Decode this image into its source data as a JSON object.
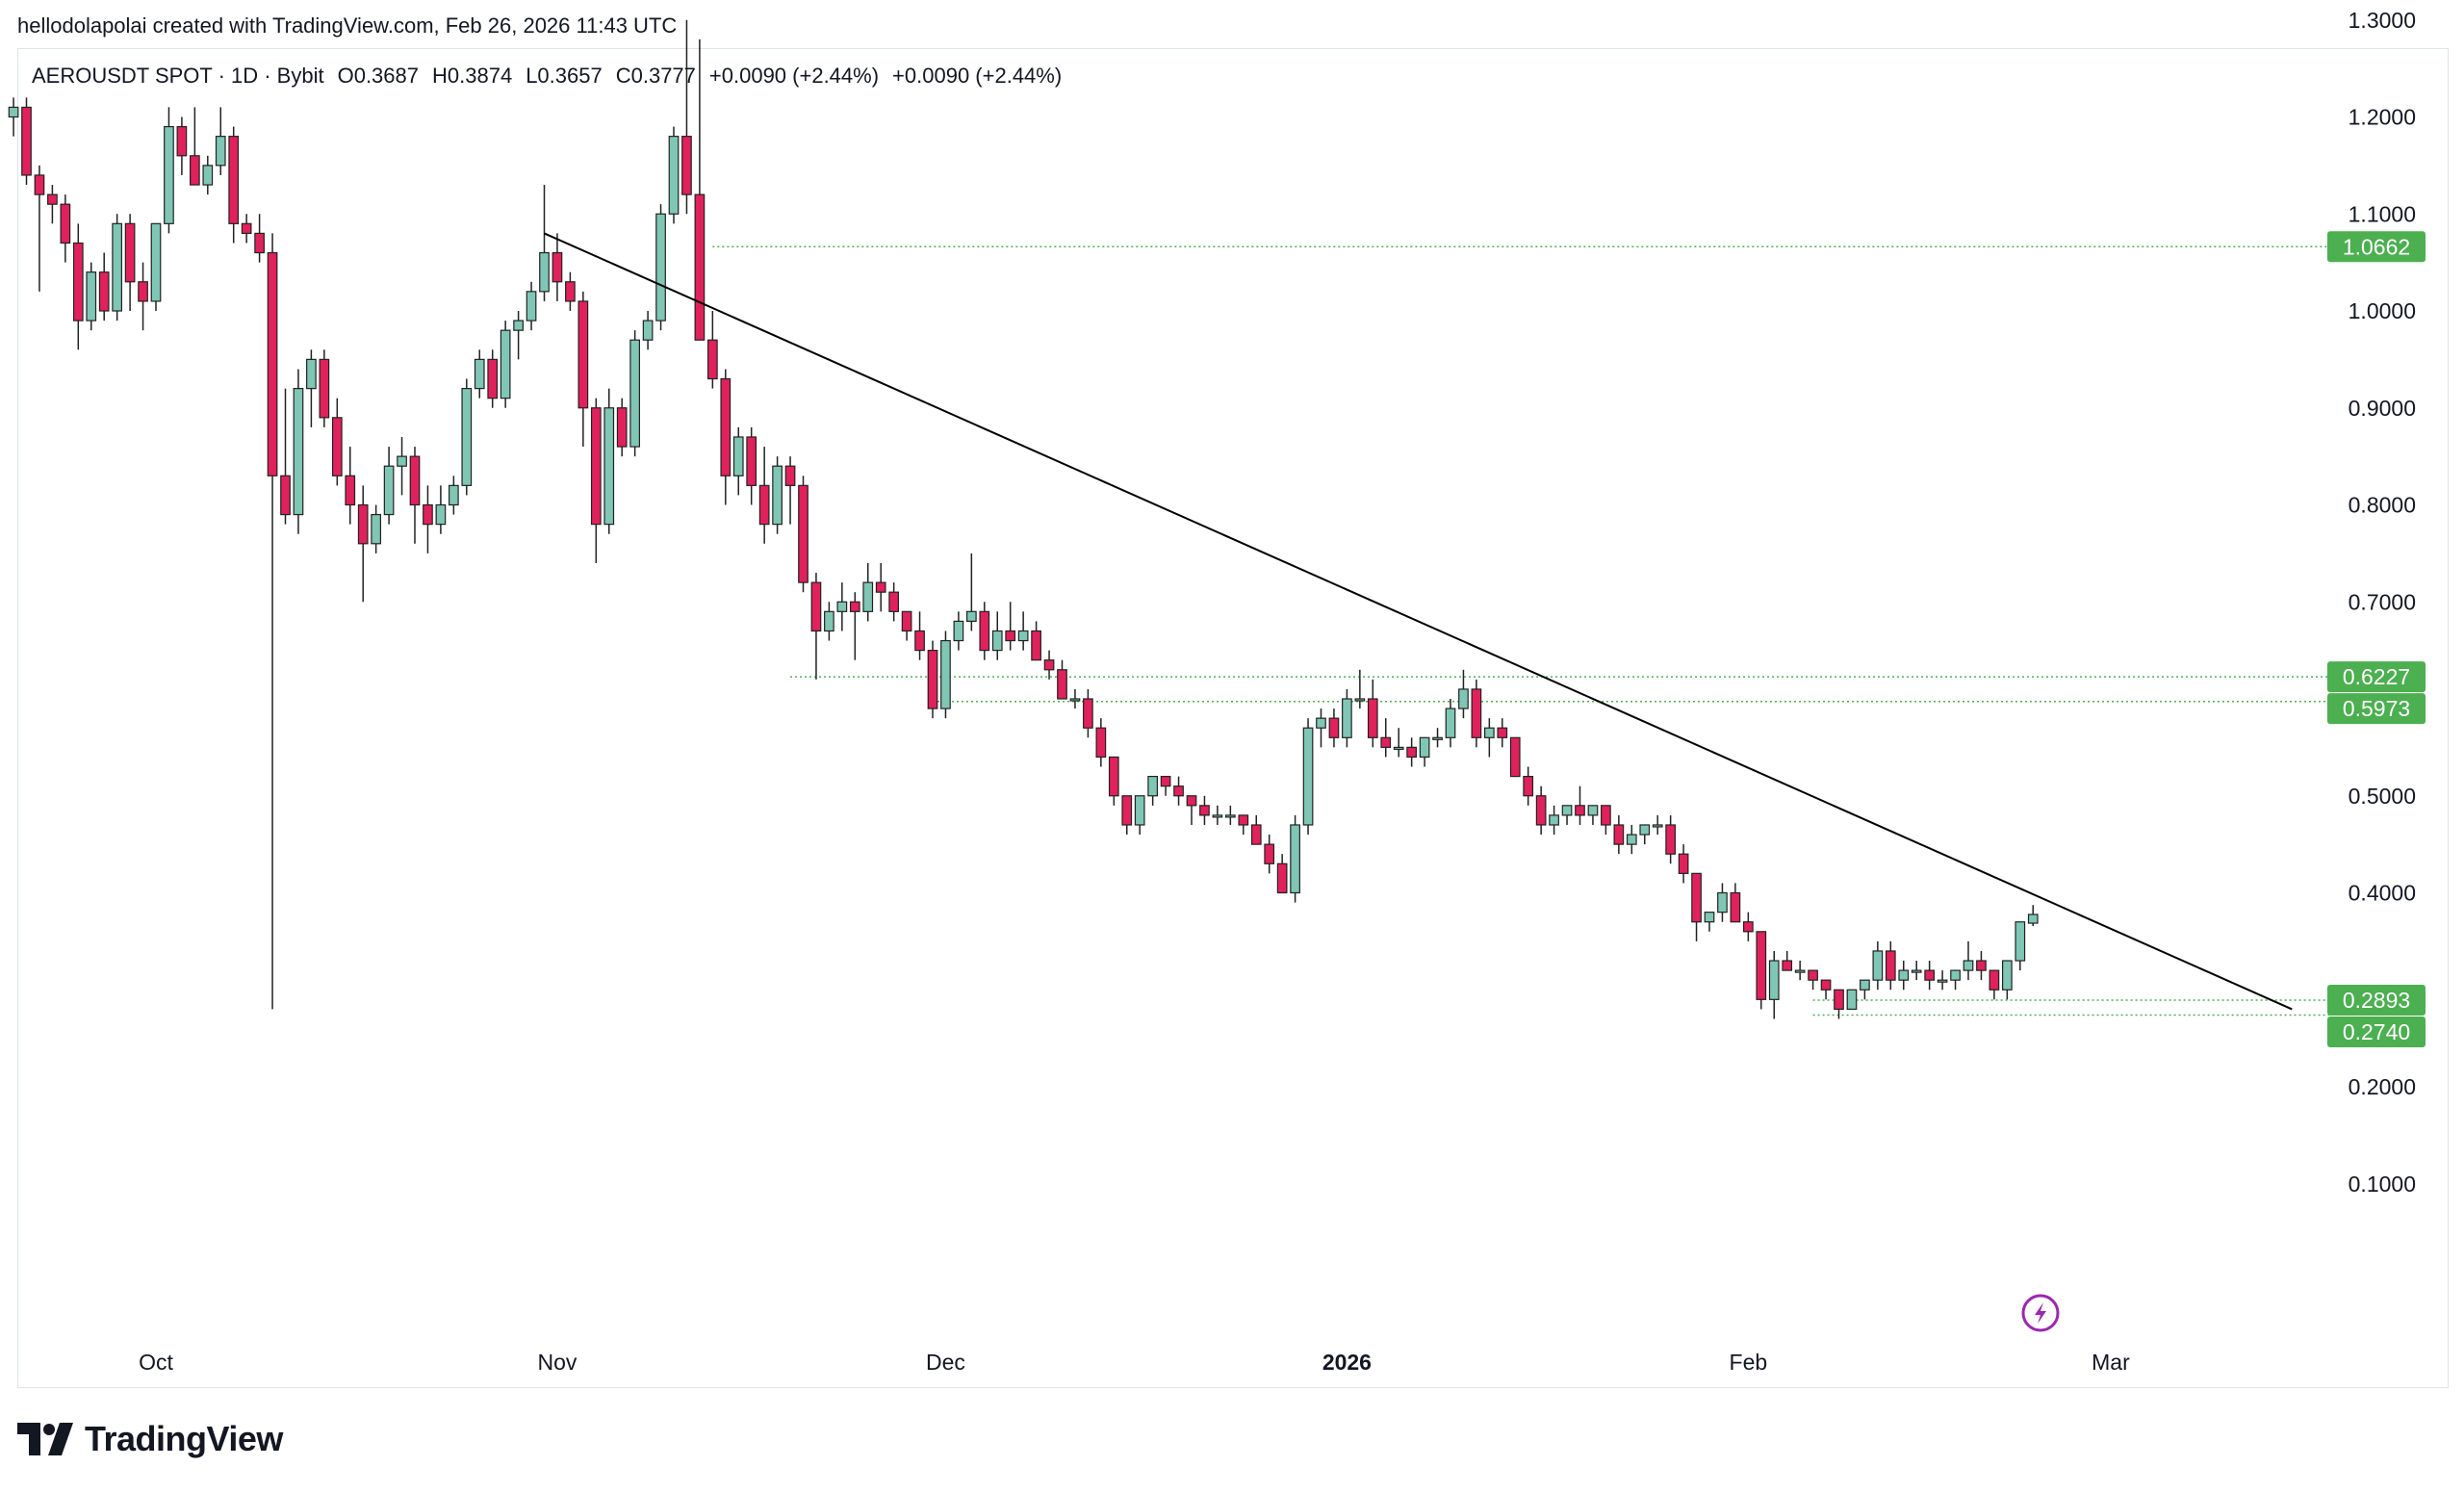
{
  "attribution": "hellodolapolai created with TradingView.com, Feb 26, 2026 11:43 UTC",
  "legend": {
    "symbol": "AEROUSDT SPOT · 1D · Bybit",
    "open": "O0.3687",
    "high": "H0.3874",
    "low": "L0.3657",
    "close": "C0.3777",
    "change1": "+0.0090 (+2.44%)",
    "change2": "+0.0090 (+2.44%)"
  },
  "brand": "TradingView",
  "colors": {
    "up": "#7fc6b5",
    "down": "#e0215c",
    "trendline": "#000000",
    "level_line": "#4caf50",
    "price_label_bg": "#4caf50"
  },
  "chart_data": {
    "type": "candlestick",
    "title": "AEROUSDT SPOT · 1D · Bybit",
    "y_ticks": [
      "1.3000",
      "1.2000",
      "1.1000",
      "1.0000",
      "0.9000",
      "0.8000",
      "0.7000",
      "0.5000",
      "0.4000",
      "0.2000",
      "0.1000"
    ],
    "x_labels": [
      {
        "date": "2025-10-01",
        "label": "Oct"
      },
      {
        "date": "2025-11-01",
        "label": "Nov"
      },
      {
        "date": "2025-12-01",
        "label": "Dec"
      },
      {
        "date": "2026-01-01",
        "label": "2026"
      },
      {
        "date": "2026-02-01",
        "label": "Feb"
      },
      {
        "date": "2026-03-01",
        "label": "Mar"
      }
    ],
    "horizontal_levels": [
      {
        "value": 1.0662,
        "label": "1.0662",
        "from": "2025-11-13"
      },
      {
        "value": 0.6227,
        "label": "0.6227",
        "from": "2025-11-19"
      },
      {
        "value": 0.5973,
        "label": "0.5973",
        "from": "2025-11-30"
      },
      {
        "value": 0.2893,
        "label": "0.2893",
        "from": "2026-02-06"
      },
      {
        "value": 0.274,
        "label": "0.2740",
        "from": "2026-02-06"
      }
    ],
    "trendline": {
      "start": {
        "date": "2025-10-31",
        "price": 1.08
      },
      "end": {
        "date": "2026-03-15",
        "price": 0.28
      }
    },
    "candles": [
      [
        "2025-09-20",
        1.2,
        1.22,
        1.18,
        1.21
      ],
      [
        "2025-09-21",
        1.21,
        1.22,
        1.13,
        1.14
      ],
      [
        "2025-09-22",
        1.14,
        1.15,
        1.02,
        1.12
      ],
      [
        "2025-09-23",
        1.12,
        1.13,
        1.09,
        1.11
      ],
      [
        "2025-09-24",
        1.11,
        1.12,
        1.05,
        1.07
      ],
      [
        "2025-09-25",
        1.07,
        1.09,
        0.96,
        0.99
      ],
      [
        "2025-09-26",
        0.99,
        1.05,
        0.98,
        1.04
      ],
      [
        "2025-09-27",
        1.04,
        1.06,
        0.99,
        1.0
      ],
      [
        "2025-09-28",
        1.0,
        1.1,
        0.99,
        1.09
      ],
      [
        "2025-09-29",
        1.09,
        1.1,
        1.0,
        1.03
      ],
      [
        "2025-09-30",
        1.03,
        1.05,
        0.98,
        1.01
      ],
      [
        "2025-10-01",
        1.01,
        1.09,
        1.0,
        1.09
      ],
      [
        "2025-10-02",
        1.09,
        1.21,
        1.08,
        1.19
      ],
      [
        "2025-10-03",
        1.19,
        1.2,
        1.14,
        1.16
      ],
      [
        "2025-10-04",
        1.16,
        1.21,
        1.13,
        1.13
      ],
      [
        "2025-10-05",
        1.13,
        1.16,
        1.12,
        1.15
      ],
      [
        "2025-10-06",
        1.15,
        1.21,
        1.14,
        1.18
      ],
      [
        "2025-10-07",
        1.18,
        1.19,
        1.07,
        1.09
      ],
      [
        "2025-10-08",
        1.09,
        1.1,
        1.07,
        1.08
      ],
      [
        "2025-10-09",
        1.08,
        1.1,
        1.05,
        1.06
      ],
      [
        "2025-10-10",
        1.06,
        1.08,
        0.28,
        0.83
      ],
      [
        "2025-10-11",
        0.83,
        0.92,
        0.78,
        0.79
      ],
      [
        "2025-10-12",
        0.79,
        0.94,
        0.77,
        0.92
      ],
      [
        "2025-10-13",
        0.92,
        0.96,
        0.88,
        0.95
      ],
      [
        "2025-10-14",
        0.95,
        0.96,
        0.88,
        0.89
      ],
      [
        "2025-10-15",
        0.89,
        0.91,
        0.82,
        0.83
      ],
      [
        "2025-10-16",
        0.83,
        0.86,
        0.78,
        0.8
      ],
      [
        "2025-10-17",
        0.8,
        0.82,
        0.7,
        0.76
      ],
      [
        "2025-10-18",
        0.76,
        0.8,
        0.75,
        0.79
      ],
      [
        "2025-10-19",
        0.79,
        0.86,
        0.78,
        0.84
      ],
      [
        "2025-10-20",
        0.84,
        0.87,
        0.81,
        0.85
      ],
      [
        "2025-10-21",
        0.85,
        0.86,
        0.76,
        0.8
      ],
      [
        "2025-10-22",
        0.8,
        0.82,
        0.75,
        0.78
      ],
      [
        "2025-10-23",
        0.78,
        0.82,
        0.77,
        0.8
      ],
      [
        "2025-10-24",
        0.8,
        0.83,
        0.79,
        0.82
      ],
      [
        "2025-10-25",
        0.82,
        0.93,
        0.81,
        0.92
      ],
      [
        "2025-10-26",
        0.92,
        0.96,
        0.91,
        0.95
      ],
      [
        "2025-10-27",
        0.95,
        0.96,
        0.9,
        0.91
      ],
      [
        "2025-10-28",
        0.91,
        0.99,
        0.9,
        0.98
      ],
      [
        "2025-10-29",
        0.98,
        1.0,
        0.95,
        0.99
      ],
      [
        "2025-10-30",
        0.99,
        1.03,
        0.98,
        1.02
      ],
      [
        "2025-10-31",
        1.02,
        1.13,
        1.01,
        1.06
      ],
      [
        "2025-11-01",
        1.06,
        1.08,
        1.01,
        1.03
      ],
      [
        "2025-11-02",
        1.03,
        1.04,
        1.0,
        1.01
      ],
      [
        "2025-11-03",
        1.01,
        1.02,
        0.86,
        0.9
      ],
      [
        "2025-11-04",
        0.9,
        0.91,
        0.74,
        0.78
      ],
      [
        "2025-11-05",
        0.78,
        0.92,
        0.77,
        0.9
      ],
      [
        "2025-11-06",
        0.9,
        0.91,
        0.85,
        0.86
      ],
      [
        "2025-11-07",
        0.86,
        0.98,
        0.85,
        0.97
      ],
      [
        "2025-11-08",
        0.97,
        1.0,
        0.96,
        0.99
      ],
      [
        "2025-11-09",
        0.99,
        1.11,
        0.98,
        1.1
      ],
      [
        "2025-11-10",
        1.1,
        1.19,
        1.09,
        1.18
      ],
      [
        "2025-11-11",
        1.18,
        1.3,
        1.1,
        1.12
      ],
      [
        "2025-11-12",
        1.12,
        1.28,
        0.97,
        0.97
      ],
      [
        "2025-11-13",
        0.97,
        1.0,
        0.92,
        0.93
      ],
      [
        "2025-11-14",
        0.93,
        0.94,
        0.8,
        0.83
      ],
      [
        "2025-11-15",
        0.83,
        0.88,
        0.81,
        0.87
      ],
      [
        "2025-11-16",
        0.87,
        0.88,
        0.8,
        0.82
      ],
      [
        "2025-11-17",
        0.82,
        0.86,
        0.76,
        0.78
      ],
      [
        "2025-11-18",
        0.78,
        0.85,
        0.77,
        0.84
      ],
      [
        "2025-11-19",
        0.84,
        0.85,
        0.78,
        0.82
      ],
      [
        "2025-11-20",
        0.82,
        0.83,
        0.71,
        0.72
      ],
      [
        "2025-11-21",
        0.72,
        0.73,
        0.62,
        0.67
      ],
      [
        "2025-11-22",
        0.67,
        0.7,
        0.66,
        0.69
      ],
      [
        "2025-11-23",
        0.69,
        0.72,
        0.67,
        0.7
      ],
      [
        "2025-11-24",
        0.7,
        0.71,
        0.64,
        0.69
      ],
      [
        "2025-11-25",
        0.69,
        0.74,
        0.68,
        0.72
      ],
      [
        "2025-11-26",
        0.72,
        0.74,
        0.69,
        0.71
      ],
      [
        "2025-11-27",
        0.71,
        0.72,
        0.68,
        0.69
      ],
      [
        "2025-11-28",
        0.69,
        0.69,
        0.66,
        0.67
      ],
      [
        "2025-11-29",
        0.67,
        0.69,
        0.64,
        0.65
      ],
      [
        "2025-11-30",
        0.65,
        0.66,
        0.58,
        0.59
      ],
      [
        "2025-12-01",
        0.59,
        0.67,
        0.58,
        0.66
      ],
      [
        "2025-12-02",
        0.66,
        0.69,
        0.65,
        0.68
      ],
      [
        "2025-12-03",
        0.68,
        0.75,
        0.67,
        0.69
      ],
      [
        "2025-12-04",
        0.69,
        0.7,
        0.64,
        0.65
      ],
      [
        "2025-12-05",
        0.65,
        0.69,
        0.64,
        0.67
      ],
      [
        "2025-12-06",
        0.67,
        0.7,
        0.65,
        0.66
      ],
      [
        "2025-12-07",
        0.66,
        0.69,
        0.65,
        0.67
      ],
      [
        "2025-12-08",
        0.67,
        0.68,
        0.64,
        0.64
      ],
      [
        "2025-12-09",
        0.64,
        0.65,
        0.62,
        0.63
      ],
      [
        "2025-12-10",
        0.63,
        0.64,
        0.6,
        0.6
      ],
      [
        "2025-12-11",
        0.6,
        0.61,
        0.59,
        0.6
      ],
      [
        "2025-12-12",
        0.6,
        0.61,
        0.56,
        0.57
      ],
      [
        "2025-12-13",
        0.57,
        0.58,
        0.53,
        0.54
      ],
      [
        "2025-12-14",
        0.54,
        0.54,
        0.49,
        0.5
      ],
      [
        "2025-12-15",
        0.5,
        0.5,
        0.46,
        0.47
      ],
      [
        "2025-12-16",
        0.47,
        0.5,
        0.46,
        0.5
      ],
      [
        "2025-12-17",
        0.5,
        0.52,
        0.49,
        0.52
      ],
      [
        "2025-12-18",
        0.52,
        0.52,
        0.5,
        0.51
      ],
      [
        "2025-12-19",
        0.51,
        0.52,
        0.49,
        0.5
      ],
      [
        "2025-12-20",
        0.5,
        0.5,
        0.47,
        0.49
      ],
      [
        "2025-12-21",
        0.49,
        0.5,
        0.47,
        0.48
      ],
      [
        "2025-12-22",
        0.48,
        0.49,
        0.47,
        0.48
      ],
      [
        "2025-12-23",
        0.48,
        0.49,
        0.47,
        0.48
      ],
      [
        "2025-12-24",
        0.48,
        0.48,
        0.46,
        0.47
      ],
      [
        "2025-12-25",
        0.47,
        0.48,
        0.45,
        0.45
      ],
      [
        "2025-12-26",
        0.45,
        0.46,
        0.42,
        0.43
      ],
      [
        "2025-12-27",
        0.43,
        0.44,
        0.4,
        0.4
      ],
      [
        "2025-12-28",
        0.4,
        0.48,
        0.39,
        0.47
      ],
      [
        "2025-12-29",
        0.47,
        0.58,
        0.46,
        0.57
      ],
      [
        "2025-12-30",
        0.57,
        0.59,
        0.55,
        0.58
      ],
      [
        "2025-12-31",
        0.58,
        0.59,
        0.55,
        0.56
      ],
      [
        "2026-01-01",
        0.56,
        0.61,
        0.55,
        0.6
      ],
      [
        "2026-01-02",
        0.6,
        0.63,
        0.59,
        0.6
      ],
      [
        "2026-01-03",
        0.6,
        0.62,
        0.55,
        0.56
      ],
      [
        "2026-01-04",
        0.56,
        0.58,
        0.54,
        0.55
      ],
      [
        "2026-01-05",
        0.55,
        0.57,
        0.54,
        0.55
      ],
      [
        "2026-01-06",
        0.55,
        0.56,
        0.53,
        0.54
      ],
      [
        "2026-01-07",
        0.54,
        0.56,
        0.53,
        0.56
      ],
      [
        "2026-01-08",
        0.56,
        0.57,
        0.55,
        0.56
      ],
      [
        "2026-01-09",
        0.56,
        0.6,
        0.55,
        0.59
      ],
      [
        "2026-01-10",
        0.59,
        0.63,
        0.58,
        0.61
      ],
      [
        "2026-01-11",
        0.61,
        0.62,
        0.55,
        0.56
      ],
      [
        "2026-01-12",
        0.56,
        0.58,
        0.54,
        0.57
      ],
      [
        "2026-01-13",
        0.57,
        0.58,
        0.55,
        0.56
      ],
      [
        "2026-01-14",
        0.56,
        0.56,
        0.52,
        0.52
      ],
      [
        "2026-01-15",
        0.52,
        0.53,
        0.49,
        0.5
      ],
      [
        "2026-01-16",
        0.5,
        0.51,
        0.46,
        0.47
      ],
      [
        "2026-01-17",
        0.47,
        0.49,
        0.46,
        0.48
      ],
      [
        "2026-01-18",
        0.48,
        0.49,
        0.47,
        0.49
      ],
      [
        "2026-01-19",
        0.49,
        0.51,
        0.47,
        0.48
      ],
      [
        "2026-01-20",
        0.48,
        0.49,
        0.47,
        0.49
      ],
      [
        "2026-01-21",
        0.49,
        0.49,
        0.46,
        0.47
      ],
      [
        "2026-01-22",
        0.47,
        0.48,
        0.44,
        0.45
      ],
      [
        "2026-01-23",
        0.45,
        0.47,
        0.44,
        0.46
      ],
      [
        "2026-01-24",
        0.46,
        0.47,
        0.45,
        0.47
      ],
      [
        "2026-01-25",
        0.47,
        0.48,
        0.46,
        0.47
      ],
      [
        "2026-01-26",
        0.47,
        0.48,
        0.43,
        0.44
      ],
      [
        "2026-01-27",
        0.44,
        0.45,
        0.41,
        0.42
      ],
      [
        "2026-01-28",
        0.42,
        0.42,
        0.35,
        0.37
      ],
      [
        "2026-01-29",
        0.37,
        0.38,
        0.36,
        0.38
      ],
      [
        "2026-01-30",
        0.38,
        0.41,
        0.37,
        0.4
      ],
      [
        "2026-01-31",
        0.4,
        0.41,
        0.37,
        0.37
      ],
      [
        "2026-02-01",
        0.37,
        0.38,
        0.35,
        0.36
      ],
      [
        "2026-02-02",
        0.36,
        0.36,
        0.28,
        0.29
      ],
      [
        "2026-02-03",
        0.29,
        0.34,
        0.27,
        0.33
      ],
      [
        "2026-02-04",
        0.33,
        0.34,
        0.32,
        0.32
      ],
      [
        "2026-02-05",
        0.32,
        0.33,
        0.31,
        0.32
      ],
      [
        "2026-02-06",
        0.32,
        0.32,
        0.3,
        0.31
      ],
      [
        "2026-02-07",
        0.31,
        0.31,
        0.29,
        0.3
      ],
      [
        "2026-02-08",
        0.3,
        0.3,
        0.27,
        0.28
      ],
      [
        "2026-02-09",
        0.28,
        0.3,
        0.28,
        0.3
      ],
      [
        "2026-02-10",
        0.3,
        0.31,
        0.29,
        0.31
      ],
      [
        "2026-02-11",
        0.31,
        0.35,
        0.3,
        0.34
      ],
      [
        "2026-02-12",
        0.34,
        0.35,
        0.3,
        0.31
      ],
      [
        "2026-02-13",
        0.31,
        0.33,
        0.3,
        0.32
      ],
      [
        "2026-02-14",
        0.32,
        0.33,
        0.31,
        0.32
      ],
      [
        "2026-02-15",
        0.32,
        0.33,
        0.3,
        0.31
      ],
      [
        "2026-02-16",
        0.31,
        0.32,
        0.3,
        0.31
      ],
      [
        "2026-02-17",
        0.31,
        0.32,
        0.3,
        0.32
      ],
      [
        "2026-02-18",
        0.32,
        0.35,
        0.31,
        0.33
      ],
      [
        "2026-02-19",
        0.33,
        0.34,
        0.31,
        0.32
      ],
      [
        "2026-02-20",
        0.32,
        0.32,
        0.29,
        0.3
      ],
      [
        "2026-02-21",
        0.3,
        0.33,
        0.29,
        0.33
      ],
      [
        "2026-02-22",
        0.33,
        0.37,
        0.32,
        0.37
      ],
      [
        "2026-02-23",
        0.3687,
        0.3874,
        0.3657,
        0.3777
      ]
    ]
  }
}
